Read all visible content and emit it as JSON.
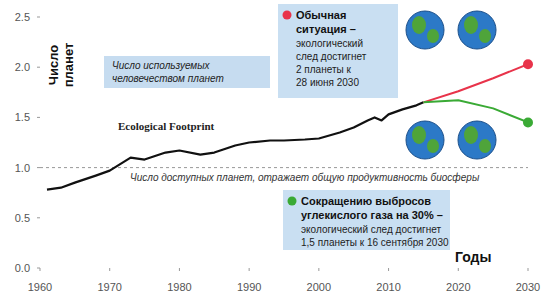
{
  "chart_data": {
    "type": "line",
    "xlabel": "Годы",
    "ylabel": "Число планет",
    "x": [
      1961,
      1963,
      1965,
      1968,
      1970,
      1973,
      1975,
      1978,
      1980,
      1983,
      1985,
      1988,
      1990,
      1993,
      1995,
      1998,
      2000,
      2003,
      2005,
      2007,
      2008,
      2009,
      2010,
      2012,
      2014,
      2015,
      2020,
      2025,
      2030
    ],
    "series": [
      {
        "name": "Ecological Footprint",
        "color": "#111111",
        "values": [
          0.78,
          0.8,
          0.85,
          0.92,
          0.97,
          1.1,
          1.08,
          1.15,
          1.17,
          1.13,
          1.15,
          1.22,
          1.25,
          1.27,
          1.27,
          1.28,
          1.29,
          1.35,
          1.4,
          1.47,
          1.5,
          1.47,
          1.53,
          1.58,
          1.62,
          1.65,
          null,
          null,
          null
        ]
      },
      {
        "color": "#e8334a",
        "values": [
          null,
          null,
          null,
          null,
          null,
          null,
          null,
          null,
          null,
          null,
          null,
          null,
          null,
          null,
          null,
          null,
          null,
          null,
          null,
          null,
          null,
          null,
          null,
          null,
          null,
          1.65,
          1.76,
          1.89,
          2.03
        ],
        "annotation": {
          "heading": [
            "Обычная",
            "ситуация –"
          ],
          "body": [
            "экологический",
            "след достигнет",
            "2 планеты к",
            "28 июня 2030"
          ]
        }
      },
      {
        "color": "#3aaa35",
        "values": [
          null,
          null,
          null,
          null,
          null,
          null,
          null,
          null,
          null,
          null,
          null,
          null,
          null,
          null,
          null,
          null,
          null,
          null,
          null,
          null,
          null,
          null,
          null,
          null,
          null,
          1.65,
          1.67,
          1.59,
          1.45
        ],
        "annotation": {
          "heading": [
            "Сокращению выбросов",
            "углекислого газа на 30% –"
          ],
          "body": [
            "экологический след достигнет",
            "1,5 планеты к 16 сентября 2030"
          ]
        }
      }
    ],
    "footprint_note": [
      "Число используемых",
      "человечеством планет"
    ],
    "reference": {
      "value": 1,
      "label": "Число доступных планет, отражает общую продуктивность биосферы"
    },
    "xlim": [
      1960,
      2030
    ],
    "xticks": [
      1960,
      1970,
      1980,
      1990,
      2000,
      2010,
      2020,
      2030
    ],
    "ylim": [
      0,
      2.5
    ],
    "yticks": [
      {
        "value": 0,
        "label": "0.0"
      },
      {
        "value": 0.5,
        "label": "0.5"
      },
      {
        "value": 1,
        "label": "1.0"
      },
      {
        "value": 1.5,
        "label": "1.5"
      },
      {
        "value": 2,
        "label": "2.0"
      },
      {
        "value": 2.5,
        "label": "2.5"
      }
    ],
    "grid": false
  }
}
